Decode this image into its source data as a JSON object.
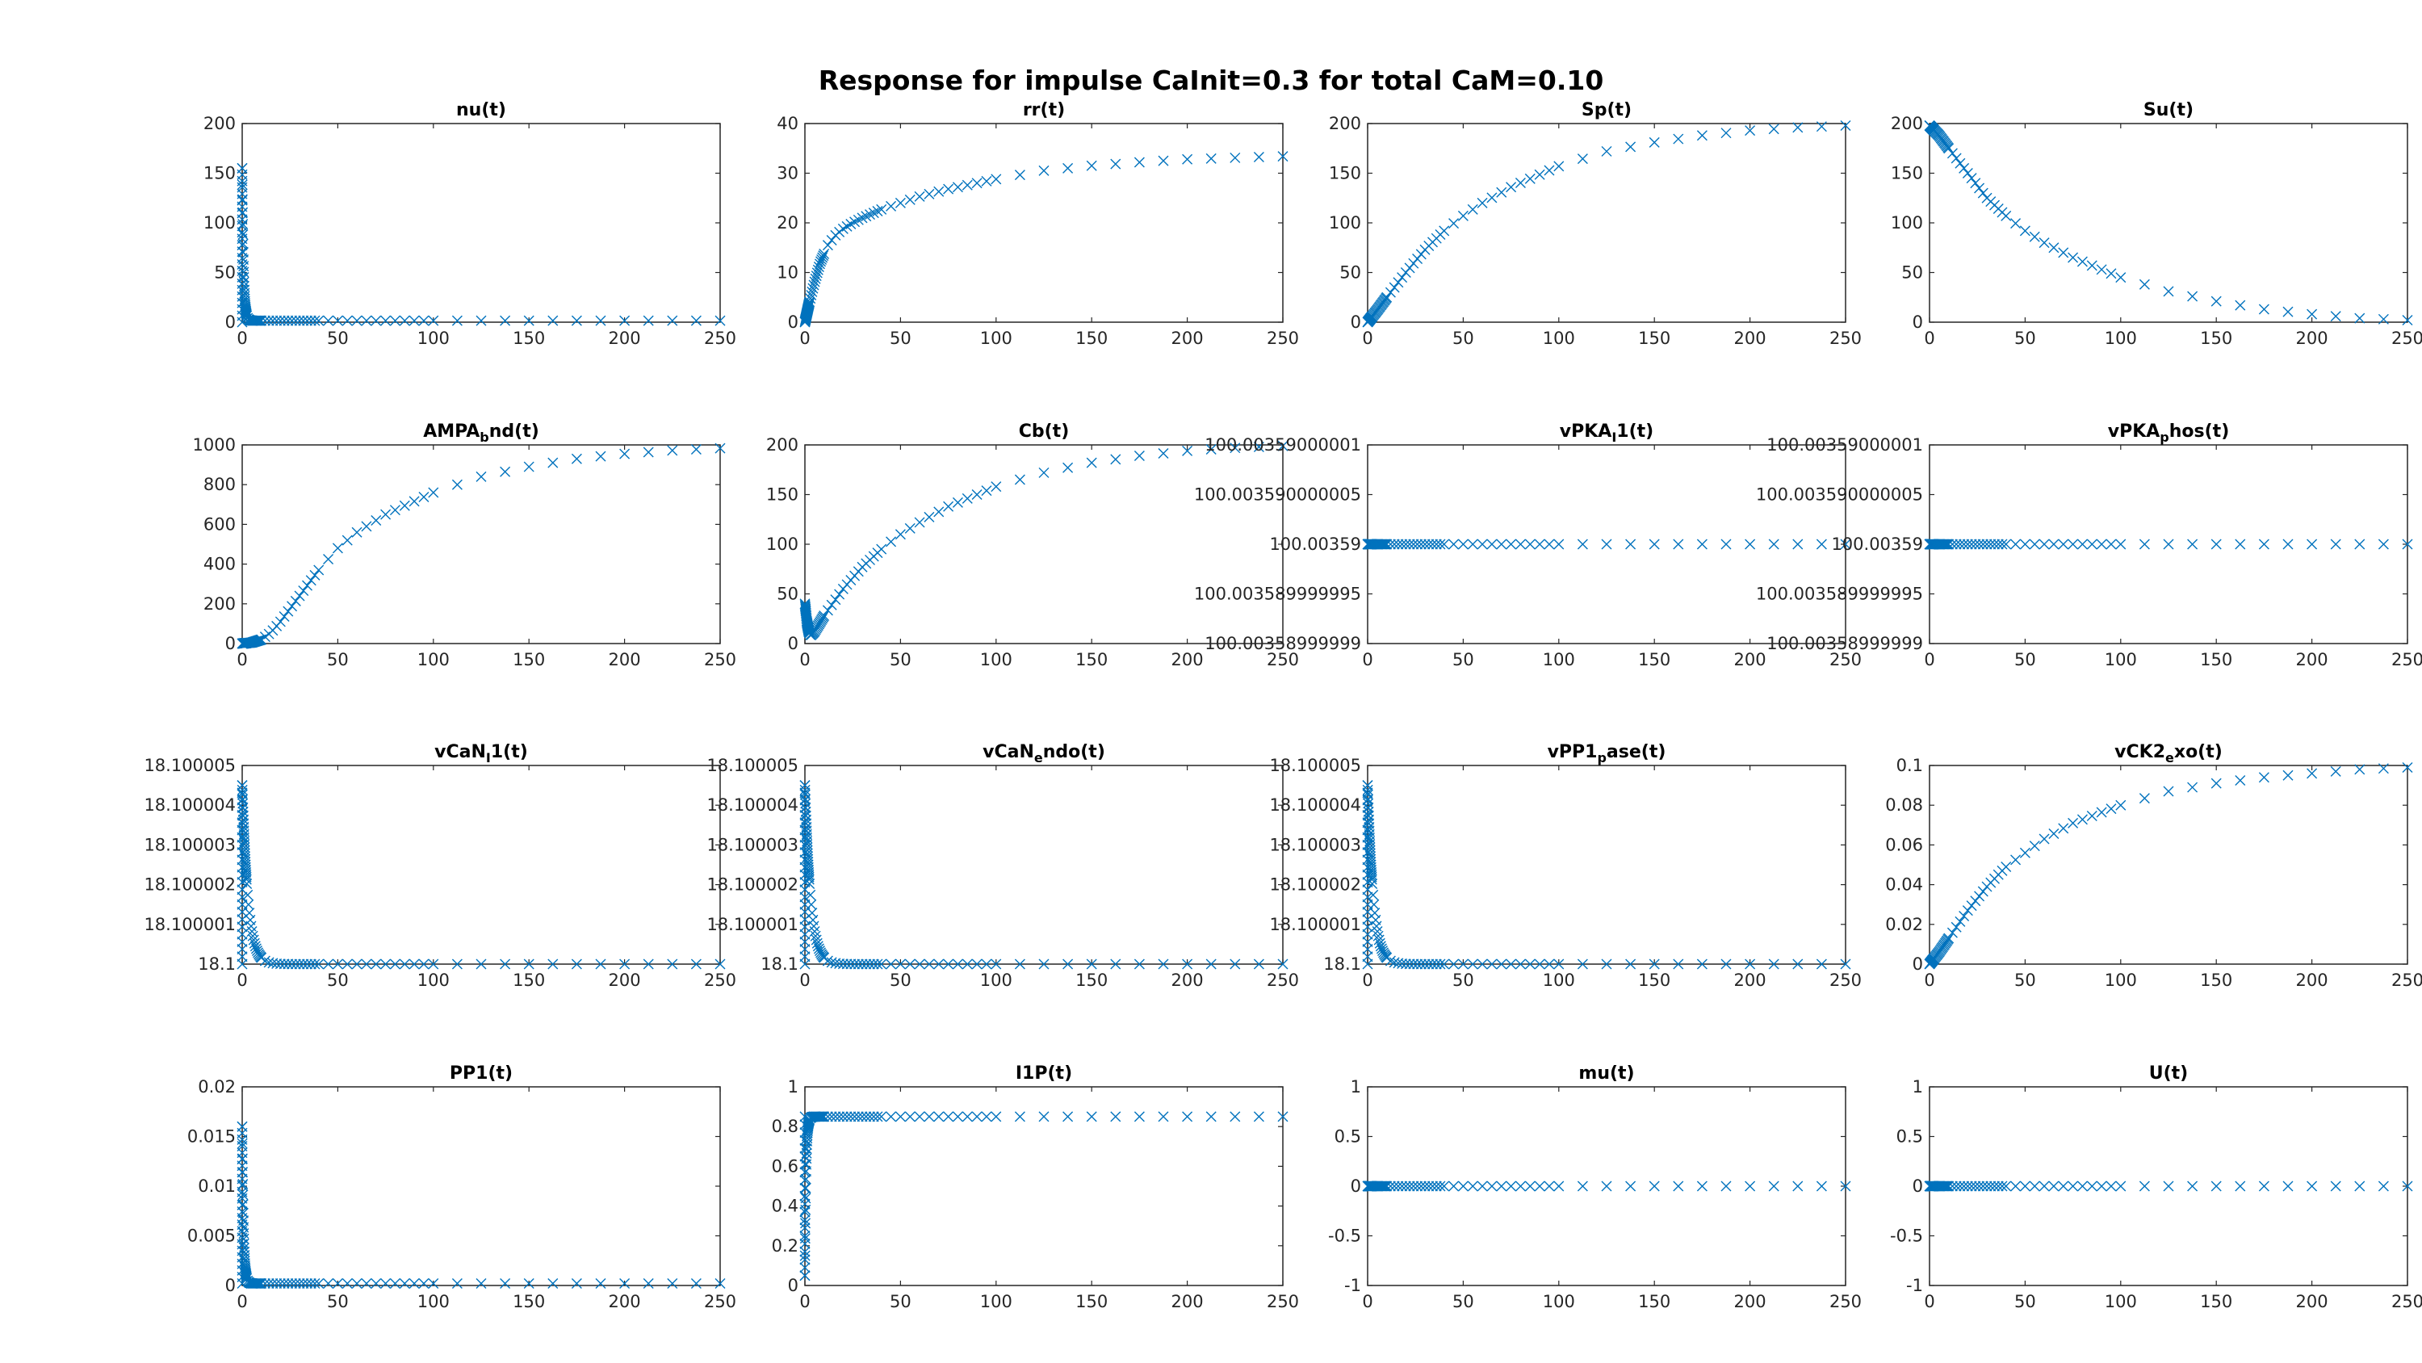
{
  "figure_title": "Response for impulse CaInit=0.3 for total CaM=0.10",
  "marker_color": "#0072BD",
  "chart_data": [
    {
      "type": "scatter",
      "marker": "x",
      "title": {
        "pre": "nu(t)",
        "sub": "",
        "post": ""
      },
      "xlim": [
        0,
        250
      ],
      "ylim": [
        0,
        200
      ],
      "xticks": [
        "0",
        "50",
        "100",
        "150",
        "200",
        "250"
      ],
      "yticks": [
        "0",
        "50",
        "100",
        "150",
        "200"
      ],
      "profile": {
        "kind": "spike",
        "start": 0,
        "peak": 155,
        "end": 1.5,
        "tau": 0.7
      }
    },
    {
      "type": "scatter",
      "marker": "x",
      "title": {
        "pre": "rr(t)",
        "sub": "",
        "post": ""
      },
      "xlim": [
        0,
        250
      ],
      "ylim": [
        0,
        40
      ],
      "xticks": [
        "0",
        "50",
        "100",
        "150",
        "200",
        "250"
      ],
      "yticks": [
        "0",
        "10",
        "20",
        "30",
        "40"
      ],
      "points": [
        [
          0,
          0
        ],
        [
          2,
          3.5
        ],
        [
          5,
          8
        ],
        [
          8,
          12
        ],
        [
          12,
          15.5
        ],
        [
          16,
          17.5
        ],
        [
          20,
          18.8
        ],
        [
          25,
          20
        ],
        [
          30,
          21
        ],
        [
          40,
          22.7
        ],
        [
          50,
          24
        ],
        [
          60,
          25.3
        ],
        [
          75,
          26.8
        ],
        [
          100,
          28.8
        ],
        [
          125,
          30.5
        ],
        [
          150,
          31.5
        ],
        [
          175,
          32.2
        ],
        [
          200,
          32.8
        ],
        [
          225,
          33.1
        ],
        [
          250,
          33.4
        ]
      ]
    },
    {
      "type": "scatter",
      "marker": "x",
      "title": {
        "pre": "Sp(t)",
        "sub": "",
        "post": ""
      },
      "xlim": [
        0,
        250
      ],
      "ylim": [
        0,
        200
      ],
      "xticks": [
        "0",
        "50",
        "100",
        "150",
        "200",
        "250"
      ],
      "yticks": [
        "0",
        "50",
        "100",
        "150",
        "200"
      ],
      "points": [
        [
          0,
          0
        ],
        [
          5,
          12
        ],
        [
          10,
          25
        ],
        [
          20,
          50
        ],
        [
          30,
          73
        ],
        [
          40,
          92
        ],
        [
          50,
          107
        ],
        [
          60,
          120
        ],
        [
          75,
          136
        ],
        [
          100,
          157
        ],
        [
          125,
          172
        ],
        [
          150,
          181
        ],
        [
          175,
          188
        ],
        [
          200,
          193
        ],
        [
          225,
          196
        ],
        [
          250,
          198
        ]
      ]
    },
    {
      "type": "scatter",
      "marker": "x",
      "title": {
        "pre": "Su(t)",
        "sub": "",
        "post": ""
      },
      "xlim": [
        0,
        250
      ],
      "ylim": [
        0,
        200
      ],
      "xticks": [
        "0",
        "50",
        "100",
        "150",
        "200",
        "250"
      ],
      "yticks": [
        "0",
        "50",
        "100",
        "150",
        "200"
      ],
      "points": [
        [
          0,
          198
        ],
        [
          5,
          188
        ],
        [
          10,
          175
        ],
        [
          20,
          150
        ],
        [
          30,
          125
        ],
        [
          40,
          107
        ],
        [
          50,
          92
        ],
        [
          60,
          80
        ],
        [
          75,
          65
        ],
        [
          100,
          45
        ],
        [
          125,
          31
        ],
        [
          150,
          21
        ],
        [
          175,
          13
        ],
        [
          200,
          8
        ],
        [
          225,
          4
        ],
        [
          250,
          2
        ]
      ]
    },
    {
      "type": "scatter",
      "marker": "x",
      "title": {
        "pre": "AMPA",
        "sub": "b",
        "post": "nd(t)"
      },
      "xlim": [
        0,
        250
      ],
      "ylim": [
        0,
        1000
      ],
      "xticks": [
        "0",
        "50",
        "100",
        "150",
        "200",
        "250"
      ],
      "yticks": [
        "0",
        "200",
        "400",
        "600",
        "800",
        "1000"
      ],
      "points": [
        [
          0,
          0
        ],
        [
          5,
          5
        ],
        [
          10,
          20
        ],
        [
          15,
          55
        ],
        [
          20,
          110
        ],
        [
          30,
          240
        ],
        [
          40,
          370
        ],
        [
          50,
          480
        ],
        [
          60,
          560
        ],
        [
          75,
          650
        ],
        [
          100,
          760
        ],
        [
          125,
          840
        ],
        [
          150,
          890
        ],
        [
          175,
          930
        ],
        [
          200,
          955
        ],
        [
          225,
          972
        ],
        [
          250,
          983
        ]
      ]
    },
    {
      "type": "scatter",
      "marker": "x",
      "title": {
        "pre": "Cb(t)",
        "sub": "",
        "post": ""
      },
      "xlim": [
        0,
        250
      ],
      "ylim": [
        0,
        200
      ],
      "xticks": [
        "0",
        "50",
        "100",
        "150",
        "200",
        "250"
      ],
      "yticks": [
        "0",
        "50",
        "100",
        "150",
        "200"
      ],
      "points": [
        [
          0,
          40
        ],
        [
          0.5,
          32
        ],
        [
          1,
          22
        ],
        [
          2,
          12
        ],
        [
          3,
          8
        ],
        [
          5,
          12
        ],
        [
          10,
          28
        ],
        [
          20,
          55
        ],
        [
          30,
          77
        ],
        [
          40,
          95
        ],
        [
          50,
          110
        ],
        [
          60,
          122
        ],
        [
          75,
          138
        ],
        [
          100,
          158
        ],
        [
          125,
          172
        ],
        [
          150,
          182
        ],
        [
          175,
          189
        ],
        [
          200,
          194
        ],
        [
          225,
          197
        ],
        [
          250,
          199
        ]
      ]
    },
    {
      "type": "scatter",
      "marker": "x",
      "title": {
        "pre": "vPKA",
        "sub": "I",
        "post": "1(t)"
      },
      "xlim": [
        0,
        250
      ],
      "ylim": [
        -2,
        2
      ],
      "xticks": [
        "0",
        "50",
        "100",
        "150",
        "200",
        "250"
      ],
      "yticks": [
        "100.00358999999",
        "100.003589999995",
        "100.00359",
        "100.003590000005",
        "100.00359000001"
      ],
      "profile": {
        "kind": "const",
        "value": 0
      }
    },
    {
      "type": "scatter",
      "marker": "x",
      "title": {
        "pre": "vPKA",
        "sub": "p",
        "post": "hos(t)"
      },
      "xlim": [
        0,
        250
      ],
      "ylim": [
        -2,
        2
      ],
      "xticks": [
        "0",
        "50",
        "100",
        "150",
        "200",
        "250"
      ],
      "yticks": [
        "100.00358999999",
        "100.003589999995",
        "100.00359",
        "100.003590000005",
        "100.00359000001"
      ],
      "profile": {
        "kind": "const",
        "value": 0
      }
    },
    {
      "type": "scatter",
      "marker": "x",
      "title": {
        "pre": "vCaN",
        "sub": "I",
        "post": "1(t)"
      },
      "xlim": [
        0,
        250
      ],
      "ylim": [
        18.1,
        18.100005
      ],
      "xticks": [
        "0",
        "50",
        "100",
        "150",
        "200",
        "250"
      ],
      "yticks": [
        "18.1",
        "18.100001",
        "18.100002",
        "18.100003",
        "18.100004",
        "18.100005"
      ],
      "profile": {
        "kind": "spike",
        "start": 18.1,
        "peak": 18.1000045,
        "end": 18.1,
        "tau": 3
      }
    },
    {
      "type": "scatter",
      "marker": "x",
      "title": {
        "pre": "vCaN",
        "sub": "e",
        "post": "ndo(t)"
      },
      "xlim": [
        0,
        250
      ],
      "ylim": [
        18.1,
        18.100005
      ],
      "xticks": [
        "0",
        "50",
        "100",
        "150",
        "200",
        "250"
      ],
      "yticks": [
        "18.1",
        "18.100001",
        "18.100002",
        "18.100003",
        "18.100004",
        "18.100005"
      ],
      "profile": {
        "kind": "spike",
        "start": 18.1,
        "peak": 18.1000045,
        "end": 18.1,
        "tau": 3
      }
    },
    {
      "type": "scatter",
      "marker": "x",
      "title": {
        "pre": "vPP1",
        "sub": "p",
        "post": "ase(t)"
      },
      "xlim": [
        0,
        250
      ],
      "ylim": [
        18.1,
        18.100005
      ],
      "xticks": [
        "0",
        "50",
        "100",
        "150",
        "200",
        "250"
      ],
      "yticks": [
        "18.1",
        "18.100001",
        "18.100002",
        "18.100003",
        "18.100004",
        "18.100005"
      ],
      "profile": {
        "kind": "spike",
        "start": 18.1,
        "peak": 18.1000045,
        "end": 18.1,
        "tau": 3
      }
    },
    {
      "type": "scatter",
      "marker": "x",
      "title": {
        "pre": "vCK2",
        "sub": "e",
        "post": "xo(t)"
      },
      "xlim": [
        0,
        250
      ],
      "ylim": [
        0,
        0.1
      ],
      "xticks": [
        "0",
        "50",
        "100",
        "150",
        "200",
        "250"
      ],
      "yticks": [
        "0",
        "0.02",
        "0.04",
        "0.06",
        "0.08",
        "0.1"
      ],
      "points": [
        [
          0,
          0
        ],
        [
          5,
          0.006
        ],
        [
          10,
          0.013
        ],
        [
          20,
          0.027
        ],
        [
          30,
          0.039
        ],
        [
          40,
          0.049
        ],
        [
          50,
          0.056
        ],
        [
          60,
          0.063
        ],
        [
          75,
          0.071
        ],
        [
          100,
          0.08
        ],
        [
          125,
          0.087
        ],
        [
          150,
          0.091
        ],
        [
          175,
          0.094
        ],
        [
          200,
          0.096
        ],
        [
          225,
          0.098
        ],
        [
          250,
          0.099
        ]
      ]
    },
    {
      "type": "scatter",
      "marker": "x",
      "title": {
        "pre": "PP1(t)",
        "sub": "",
        "post": ""
      },
      "xlim": [
        0,
        250
      ],
      "ylim": [
        0,
        0.02
      ],
      "xticks": [
        "0",
        "50",
        "100",
        "150",
        "200",
        "250"
      ],
      "yticks": [
        "0",
        "0.005",
        "0.01",
        "0.015",
        "0.02"
      ],
      "profile": {
        "kind": "spike",
        "start": 0.0002,
        "peak": 0.016,
        "end": 0.0002,
        "tau": 0.7
      }
    },
    {
      "type": "scatter",
      "marker": "x",
      "title": {
        "pre": "I1P(t)",
        "sub": "",
        "post": ""
      },
      "xlim": [
        0,
        250
      ],
      "ylim": [
        0,
        1
      ],
      "xticks": [
        "0",
        "50",
        "100",
        "150",
        "200",
        "250"
      ],
      "yticks": [
        "0",
        "0.2",
        "0.4",
        "0.6",
        "0.8",
        "1"
      ],
      "profile": {
        "kind": "rise",
        "start": 0.05,
        "end": 0.85,
        "tau": 0.6
      }
    },
    {
      "type": "scatter",
      "marker": "x",
      "title": {
        "pre": "mu(t)",
        "sub": "",
        "post": ""
      },
      "xlim": [
        0,
        250
      ],
      "ylim": [
        -1,
        1
      ],
      "xticks": [
        "0",
        "50",
        "100",
        "150",
        "200",
        "250"
      ],
      "yticks": [
        "-1",
        "-0.5",
        "0",
        "0.5",
        "1"
      ],
      "profile": {
        "kind": "const",
        "value": 0
      }
    },
    {
      "type": "scatter",
      "marker": "x",
      "title": {
        "pre": "U(t)",
        "sub": "",
        "post": ""
      },
      "xlim": [
        0,
        250
      ],
      "ylim": [
        -1,
        1
      ],
      "xticks": [
        "0",
        "50",
        "100",
        "150",
        "200",
        "250"
      ],
      "yticks": [
        "-1",
        "-0.5",
        "0",
        "0.5",
        "1"
      ],
      "profile": {
        "kind": "const",
        "value": 0
      }
    }
  ]
}
